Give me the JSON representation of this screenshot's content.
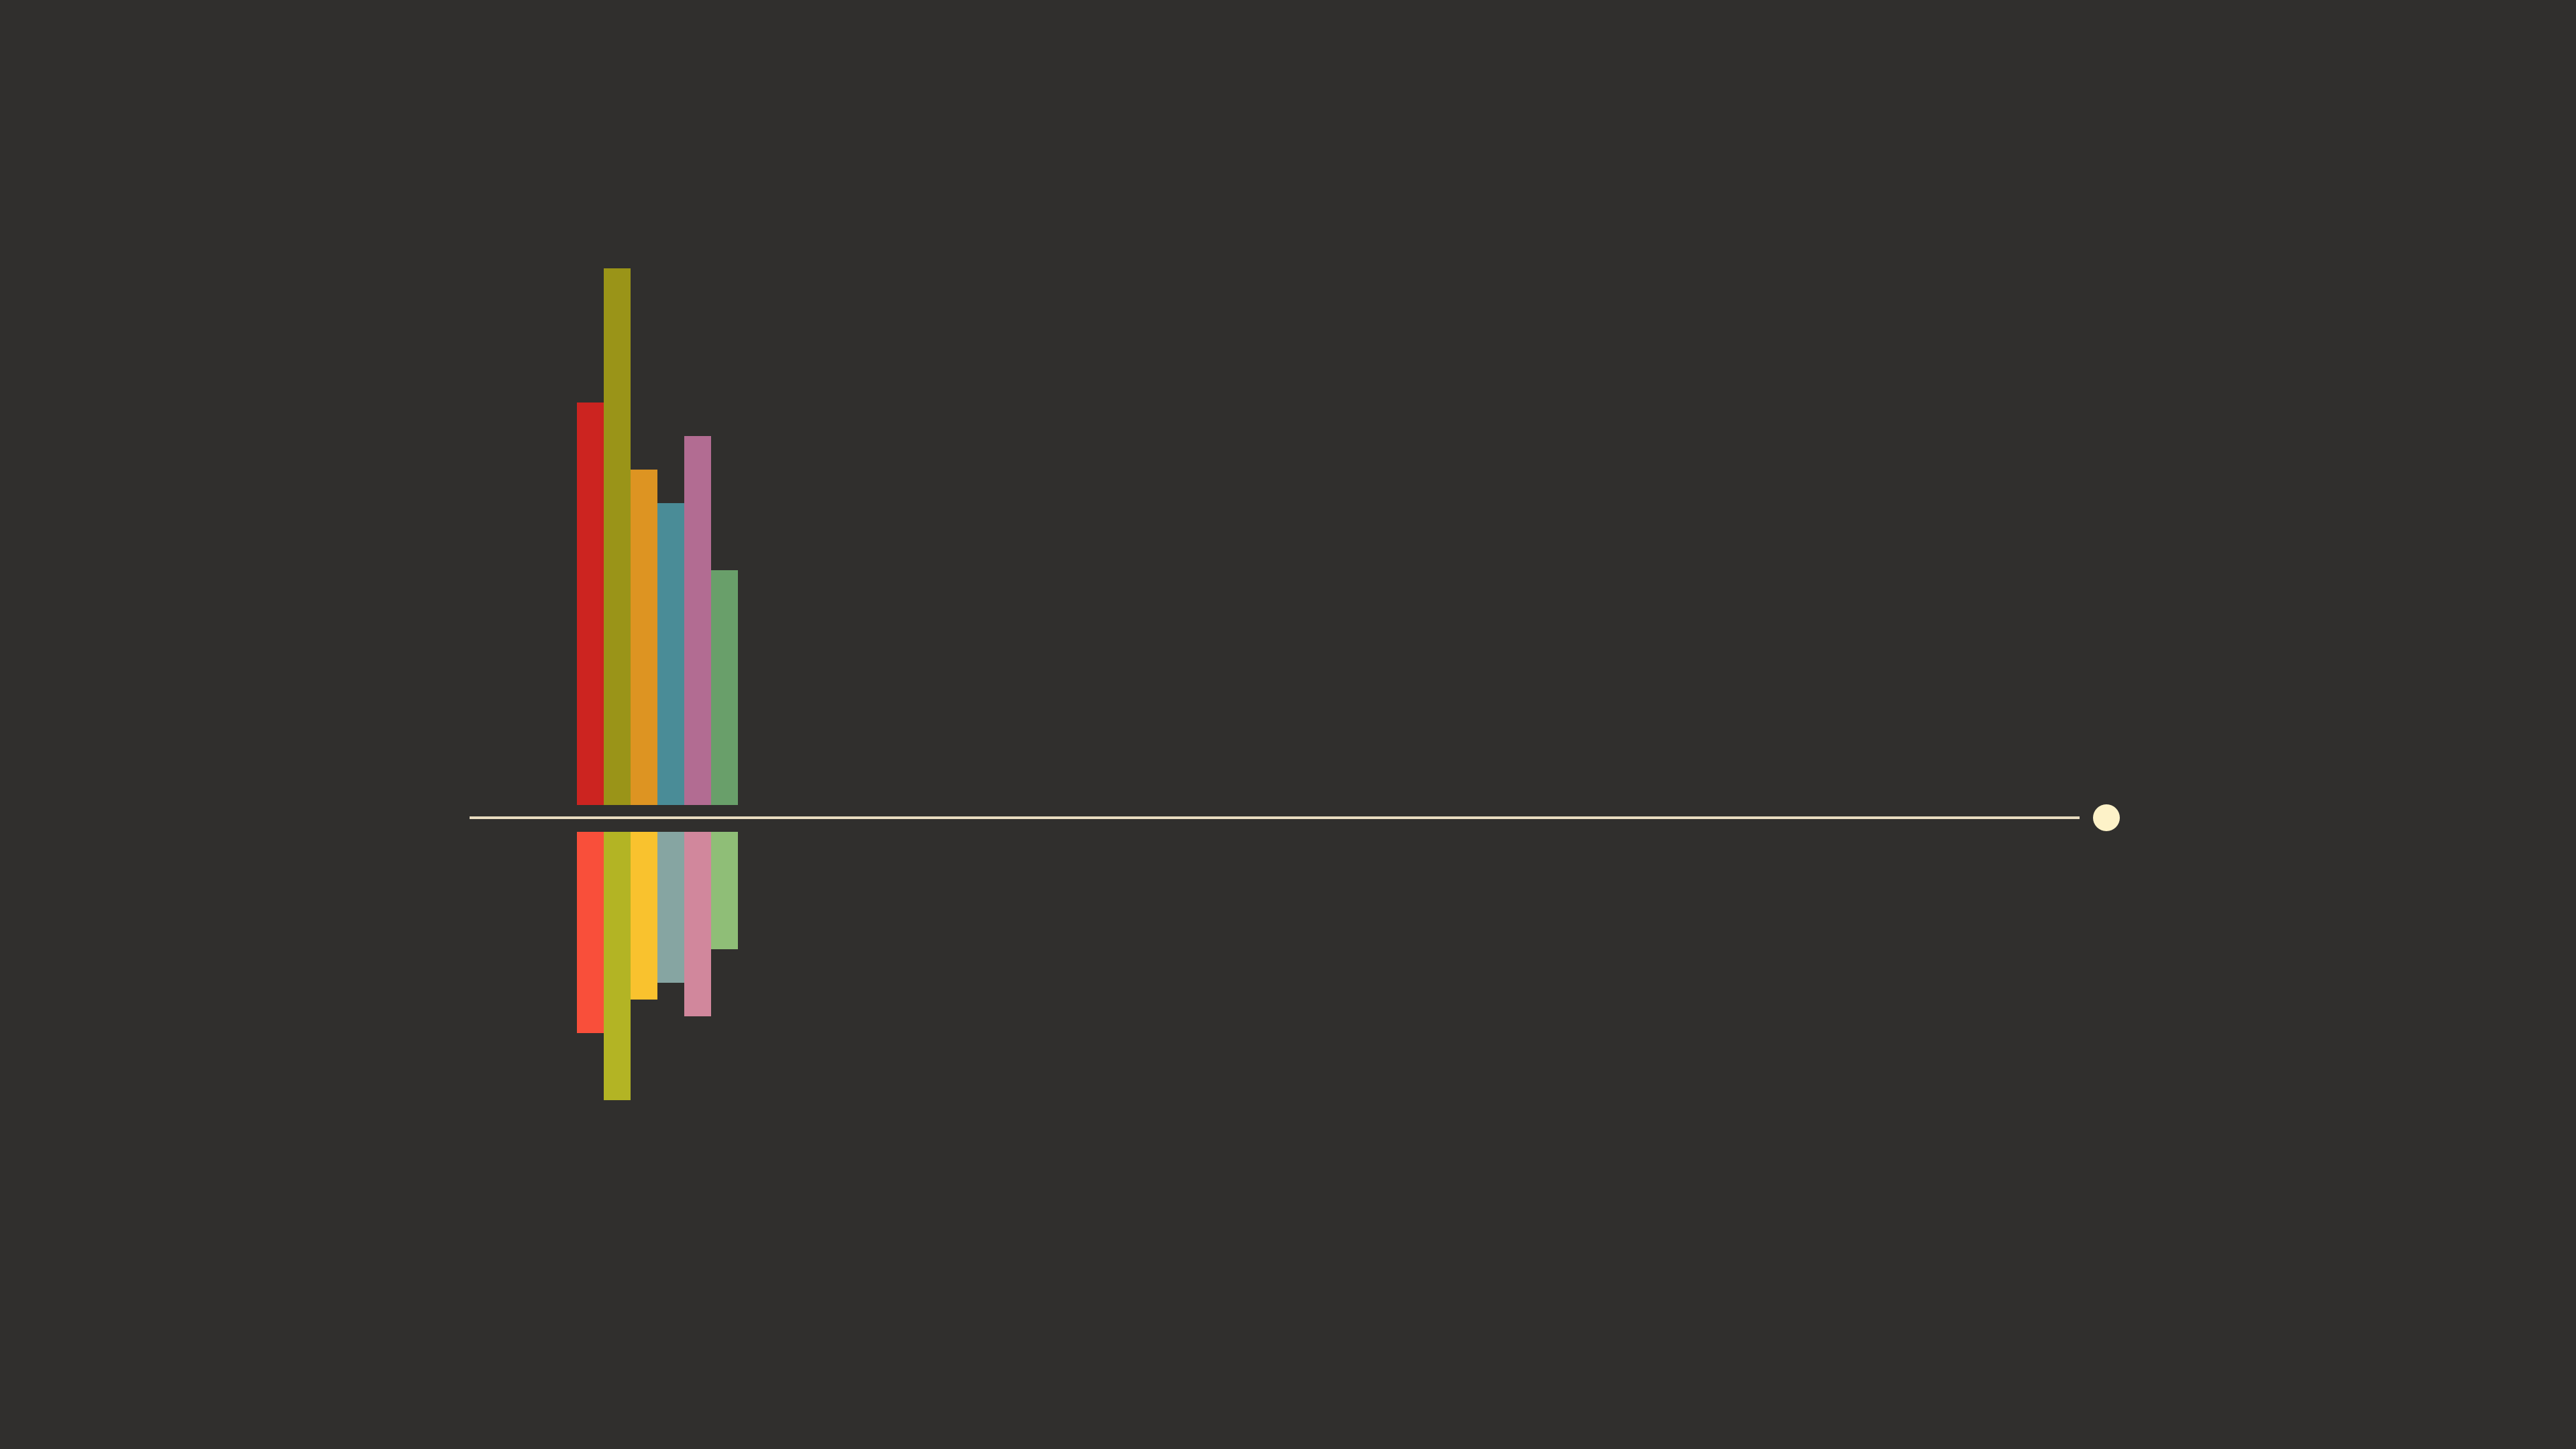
{
  "theme": {
    "background": "#302f2d",
    "line_color": "#e8dcc0",
    "knob_color": "#fdf2c8"
  },
  "timeline": {
    "progress": 0.0
  },
  "bar_chart": {
    "upper_series": [
      {
        "value": 6.0,
        "color": "#cc2420"
      },
      {
        "value": 8.0,
        "color": "#9a9418"
      },
      {
        "value": 5.0,
        "color": "#dd9422"
      },
      {
        "value": 4.5,
        "color": "#4a8c97"
      },
      {
        "value": 5.5,
        "color": "#b26c92"
      },
      {
        "value": 3.5,
        "color": "#699f6a"
      }
    ],
    "lower_series": [
      {
        "value": 3.0,
        "color": "#f94f3a"
      },
      {
        "value": 4.0,
        "color": "#b3b424"
      },
      {
        "value": 2.5,
        "color": "#f9c22e"
      },
      {
        "value": 2.25,
        "color": "#86a5a2"
      },
      {
        "value": 2.75,
        "color": "#d1879c"
      },
      {
        "value": 1.75,
        "color": "#8fbe77"
      }
    ]
  }
}
